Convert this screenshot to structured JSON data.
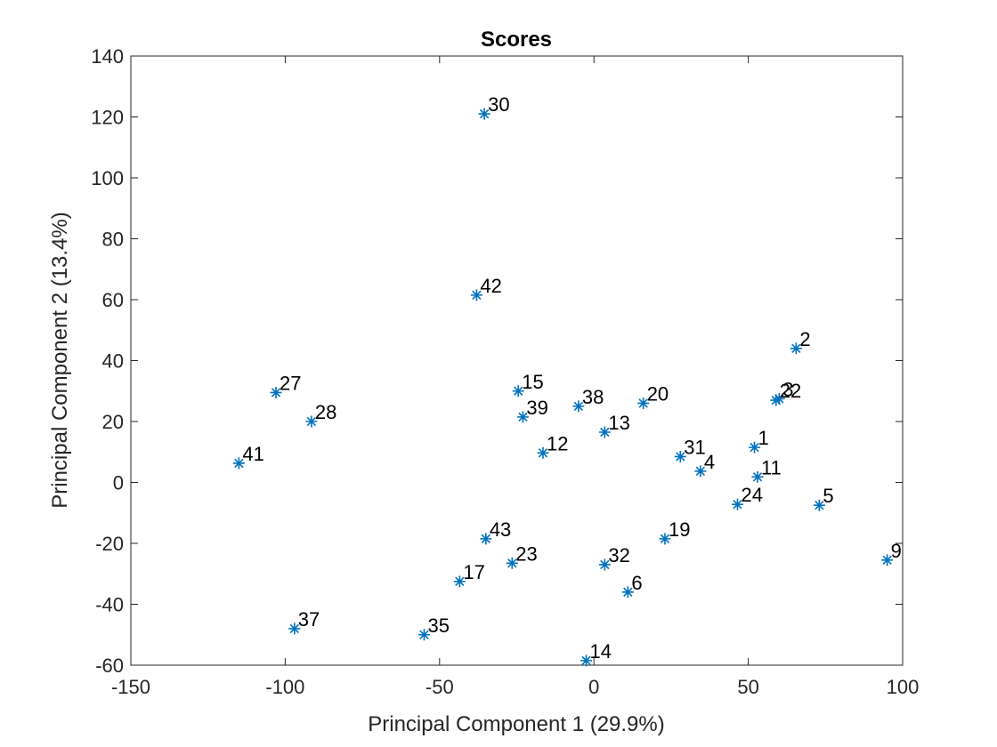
{
  "chart_data": {
    "type": "scatter",
    "title": "Scores",
    "xlabel": "Principal Component 1 (29.9%)",
    "ylabel": "Principal Component 2 (13.4%)",
    "xlim": [
      -150,
      100
    ],
    "ylim": [
      -60,
      140
    ],
    "xticks": [
      -150,
      -100,
      -50,
      0,
      50,
      100
    ],
    "yticks": [
      -60,
      -40,
      -20,
      0,
      20,
      40,
      60,
      80,
      100,
      120,
      140
    ],
    "marker": "asterisk",
    "marker_color": "#0072BD",
    "grid": false,
    "points": [
      {
        "label": "1",
        "x": 52,
        "y": 11.5
      },
      {
        "label": "2",
        "x": 65.5,
        "y": 44
      },
      {
        "label": "3",
        "x": 60,
        "y": 27.5
      },
      {
        "label": "4",
        "x": 34.5,
        "y": 3.7
      },
      {
        "label": "5",
        "x": 73,
        "y": -7.5
      },
      {
        "label": "6",
        "x": 11,
        "y": -36
      },
      {
        "label": "9",
        "x": 95,
        "y": -25.5
      },
      {
        "label": "11",
        "x": 53,
        "y": 1.8
      },
      {
        "label": "12",
        "x": -16.5,
        "y": 9.7
      },
      {
        "label": "13",
        "x": 3.5,
        "y": 16.5
      },
      {
        "label": "14",
        "x": -2.5,
        "y": -58.5
      },
      {
        "label": "15",
        "x": -24.5,
        "y": 30
      },
      {
        "label": "17",
        "x": -43.5,
        "y": -32.5
      },
      {
        "label": "19",
        "x": 23,
        "y": -18.5
      },
      {
        "label": "20",
        "x": 16,
        "y": 26
      },
      {
        "label": "22",
        "x": 59,
        "y": 27
      },
      {
        "label": "23",
        "x": -26.5,
        "y": -26.5
      },
      {
        "label": "24",
        "x": 46.5,
        "y": -7.2
      },
      {
        "label": "27",
        "x": -103,
        "y": 29.5
      },
      {
        "label": "28",
        "x": -91.5,
        "y": 20
      },
      {
        "label": "30",
        "x": -35.5,
        "y": 121
      },
      {
        "label": "31",
        "x": 28,
        "y": 8.5
      },
      {
        "label": "32",
        "x": 3.5,
        "y": -27
      },
      {
        "label": "35",
        "x": -55,
        "y": -50
      },
      {
        "label": "37",
        "x": -97,
        "y": -48
      },
      {
        "label": "38",
        "x": -5,
        "y": 25
      },
      {
        "label": "39",
        "x": -23,
        "y": 21.5
      },
      {
        "label": "41",
        "x": -115,
        "y": 6.3
      },
      {
        "label": "42",
        "x": -38,
        "y": 61.5
      },
      {
        "label": "43",
        "x": -35,
        "y": -18.5
      }
    ]
  }
}
